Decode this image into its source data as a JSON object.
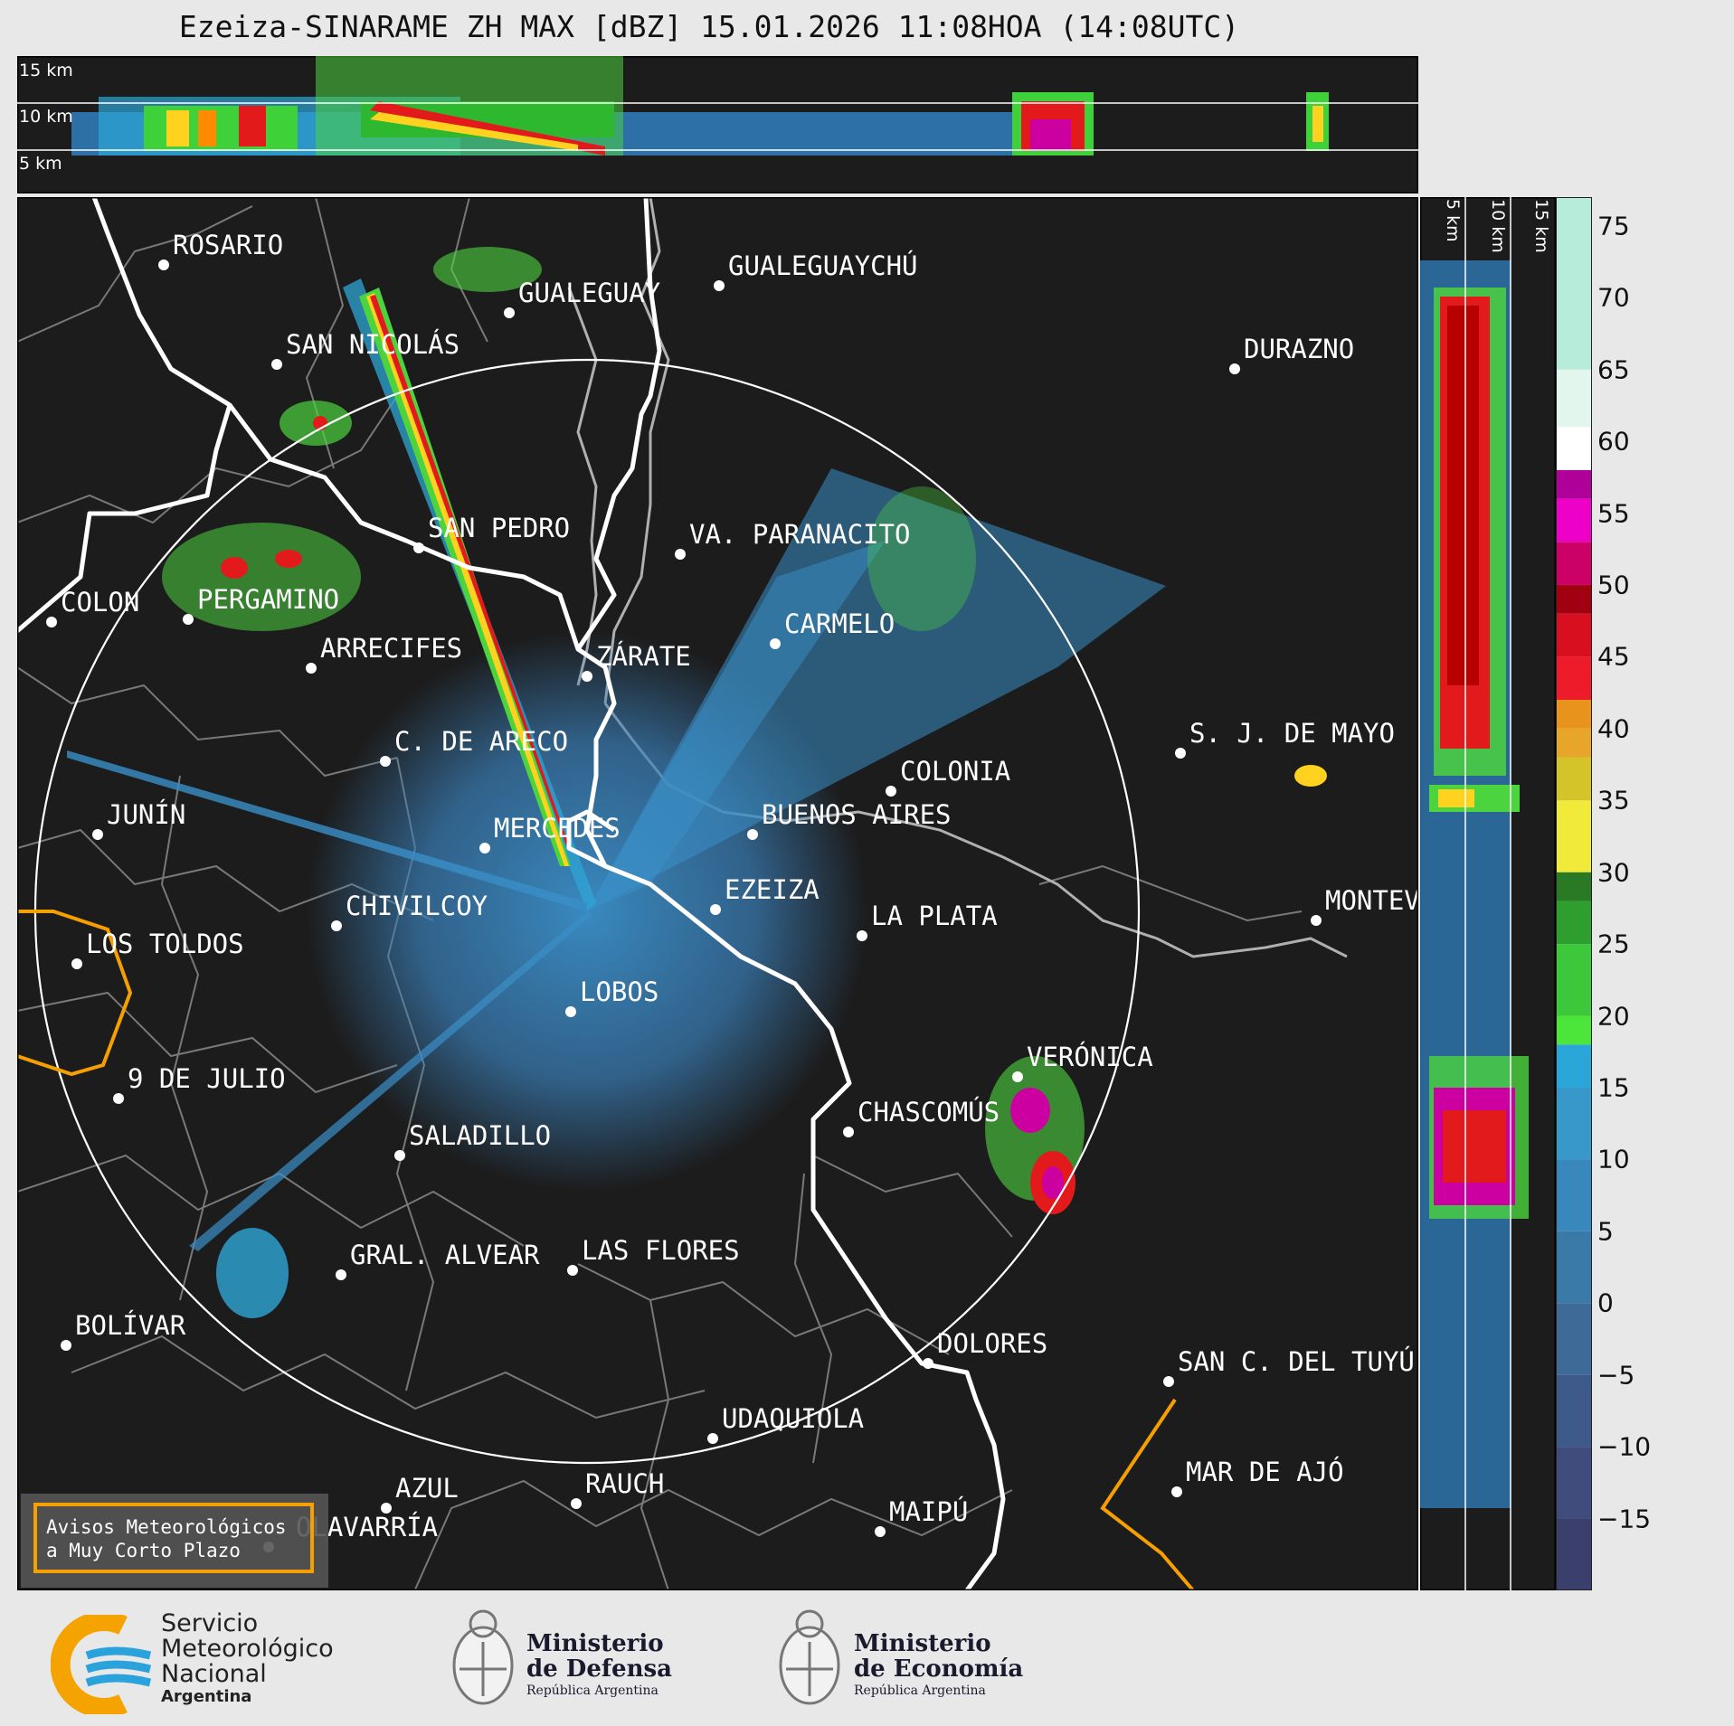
{
  "title": "Ezeiza-SINARAME ZH MAX [dBZ] 15.01.2026 11:08HOA (14:08UTC)",
  "top_panel": {
    "heights": [
      "15 km",
      "10 km",
      "5 km"
    ]
  },
  "side_panel": {
    "heights": [
      "5 km",
      "10 km",
      "15 km"
    ]
  },
  "colorbar": {
    "ticks": [
      "75",
      "70",
      "65",
      "60",
      "55",
      "50",
      "45",
      "40",
      "35",
      "30",
      "25",
      "20",
      "15",
      "10",
      "5",
      "0",
      "−5",
      "−10",
      "−15"
    ],
    "range": [
      -20,
      77
    ]
  },
  "cities": [
    {
      "name": "ROSARIO"
    },
    {
      "name": "GUALEGUAYCHÚ"
    },
    {
      "name": "GUALEGUAY"
    },
    {
      "name": "SAN NICOLÁS"
    },
    {
      "name": "DURAZNO"
    },
    {
      "name": "SAN PEDRO"
    },
    {
      "name": "VA. PARANACITO"
    },
    {
      "name": "COLON"
    },
    {
      "name": "PERGAMINO"
    },
    {
      "name": "CARMELO"
    },
    {
      "name": "ARRECIFES"
    },
    {
      "name": "ZÁRATE"
    },
    {
      "name": "S. J. DE MAYO"
    },
    {
      "name": "C. DE ARECO"
    },
    {
      "name": "COLONIA"
    },
    {
      "name": "JUNÍN"
    },
    {
      "name": "BUENOS AIRES"
    },
    {
      "name": "MERCEDES"
    },
    {
      "name": "EZEIZA"
    },
    {
      "name": "MONTEVIDEO"
    },
    {
      "name": "CHIVILCOY"
    },
    {
      "name": "LA PLATA"
    },
    {
      "name": "LOS TOLDOS"
    },
    {
      "name": "LOBOS"
    },
    {
      "name": "VERÓNICA"
    },
    {
      "name": "9 DE JULIO"
    },
    {
      "name": "CHASCOMÚS"
    },
    {
      "name": "SALADILLO"
    },
    {
      "name": "GRAL. ALVEAR"
    },
    {
      "name": "LAS FLORES"
    },
    {
      "name": "BOLÍVAR"
    },
    {
      "name": "DOLORES"
    },
    {
      "name": "SAN C. DEL TUYÚ"
    },
    {
      "name": "UDAQUIOLA"
    },
    {
      "name": "MAR DE AJÓ"
    },
    {
      "name": "AZUL"
    },
    {
      "name": "RAUCH"
    },
    {
      "name": "OLAVARRÍA"
    },
    {
      "name": "MAIPÚ"
    }
  ],
  "legend_box": {
    "line1": "Avisos Meteorológicos",
    "line2": "a Muy Corto Plazo",
    "color": "#f5a000"
  },
  "footer": {
    "smn": {
      "line1": "Servicio",
      "line2": "Meteorológico",
      "line3": "Nacional",
      "line4": "Argentina"
    },
    "defensa": {
      "line1": "Ministerio",
      "line2": "de Defensa",
      "line3": "República Argentina"
    },
    "economia": {
      "line1": "Ministerio",
      "line2": "de Economía",
      "line3": "República Argentina"
    }
  },
  "colors": {
    "background": "#1c1c1c",
    "ring": "#ffffff",
    "coast": "#ffffff",
    "borders": "#8a8a8a",
    "warning": "#f5a000"
  }
}
